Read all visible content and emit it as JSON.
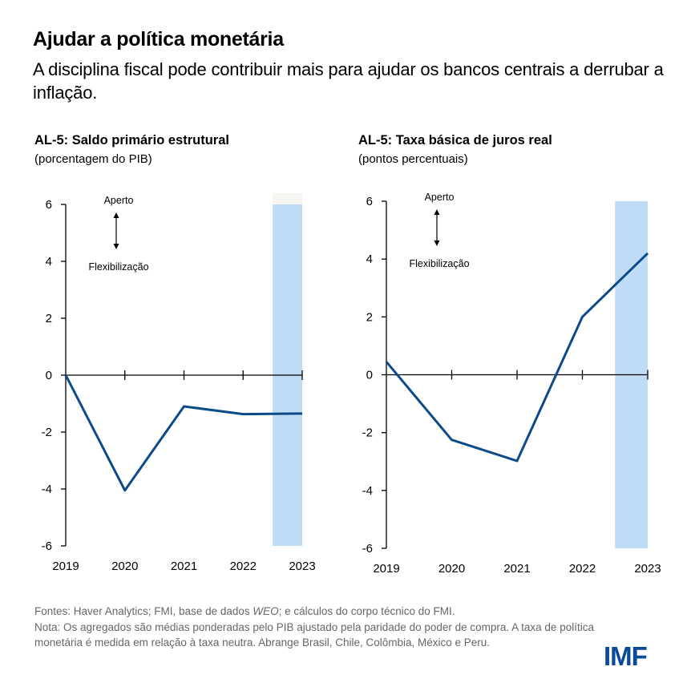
{
  "header": {
    "title": "Ajudar a política monetária",
    "subtitle": "A disciplina fiscal pode contribuir mais para ajudar os bancos centrais a derrubar a inflação."
  },
  "colors": {
    "line": "#0c4a8a",
    "shade": "#bfdcf6",
    "shade_top": "#f7f5f2",
    "logo": "#0a4a9a",
    "footer_text": "#666666"
  },
  "chart_data": [
    {
      "type": "line",
      "title": "AL-5: Saldo primário estrutural",
      "subtitle": "(porcentagem do PIB)",
      "xlabel": "",
      "ylabel": "",
      "x": [
        "2019",
        "2020",
        "2021",
        "2022",
        "2023"
      ],
      "series": [
        {
          "name": "Saldo primário estrutural",
          "values": [
            0.0,
            -4.05,
            -1.1,
            -1.37,
            -1.35
          ]
        }
      ],
      "ylim": [
        -6,
        6
      ],
      "yticks": [
        "6",
        "4",
        "2",
        "0",
        "-2",
        "-4",
        "-6"
      ],
      "ytick_values": [
        6,
        4,
        2,
        0,
        -2,
        -4,
        -6
      ],
      "shaded_region": {
        "from_index": 3.5,
        "to_index": 4
      },
      "annotations": {
        "up": "Aperto",
        "down": "Flexibilização"
      },
      "grid": false
    },
    {
      "type": "line",
      "title": "AL-5: Taxa básica de juros real",
      "subtitle": "(pontos percentuais)",
      "xlabel": "",
      "ylabel": "",
      "x": [
        "2019",
        "2020",
        "2021",
        "2022",
        "2023"
      ],
      "series": [
        {
          "name": "Taxa básica de juros real",
          "values": [
            0.45,
            -2.25,
            -2.98,
            2.0,
            4.2
          ]
        }
      ],
      "ylim": [
        -6,
        6
      ],
      "yticks": [
        "6",
        "4",
        "2",
        "0",
        "-2",
        "-4",
        "-6"
      ],
      "ytick_values": [
        6,
        4,
        2,
        0,
        -2,
        -4,
        -6
      ],
      "shaded_region": {
        "from_index": 3.5,
        "to_index": 4
      },
      "annotations": {
        "up": "Aperto",
        "down": "Flexibilização"
      },
      "grid": false
    }
  ],
  "footer": {
    "sources_prefix": "Fontes: Haver Analytics; FMI, base de dados ",
    "sources_italic": "WEO",
    "sources_suffix": "; e cálculos do corpo técnico do FMI.",
    "note": "Nota: Os agregados são médias ponderadas pelo PIB ajustado pela paridade do poder de compra. A taxa de política monetária é medida em relação à taxa neutra. Abrange Brasil, Chile, Colômbia, México e Peru."
  },
  "logo": {
    "text": "IMF"
  }
}
